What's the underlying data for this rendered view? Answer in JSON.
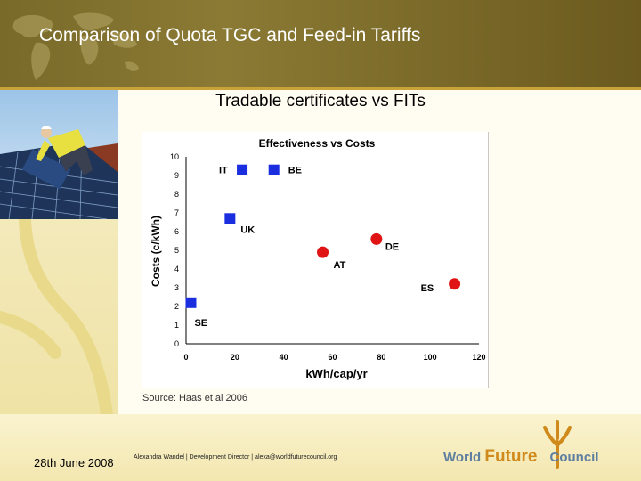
{
  "header": {
    "title": "Comparison of Quota TGC  and Feed-in Tariffs"
  },
  "slide": {
    "subtitle": "Tradable certificates vs FITs",
    "source": "Source: Haas et al 2006"
  },
  "footer": {
    "date": "28th June 2008",
    "credit": "Alexandra Wandel | Development Director | alexa@worldfuturecouncil.org",
    "logo_world": "World",
    "logo_future": "Future",
    "logo_council": "Council"
  },
  "colors": {
    "quota": "#1a2ee0",
    "fit": "#e01414",
    "header_bg": "#7a6a2a",
    "logo_blue": "#5e7fa0",
    "logo_orange": "#d08a1c"
  },
  "icons": {
    "globe": "world-map-icon",
    "logo_mark": "tree-figure-icon"
  },
  "chart_data": {
    "type": "scatter",
    "title": "Effectiveness vs Costs",
    "xlabel": "kWh/cap/yr",
    "ylabel": "Costs (c/kWh)",
    "xlim": [
      0,
      120
    ],
    "ylim": [
      0,
      10
    ],
    "xticks": [
      "0",
      "20",
      "40",
      "60",
      "80",
      "100",
      "120"
    ],
    "yticks": [
      "0",
      "1",
      "2",
      "3",
      "4",
      "5",
      "6",
      "7",
      "8",
      "9",
      "10"
    ],
    "grid": false,
    "series": [
      {
        "marker": "square",
        "color": "#1a2ee0",
        "points": [
          {
            "label": "IT",
            "x": 23,
            "y": 9.3
          },
          {
            "label": "BE",
            "x": 36,
            "y": 9.3
          },
          {
            "label": "UK",
            "x": 18,
            "y": 6.7
          },
          {
            "label": "SE",
            "x": 2,
            "y": 2.2
          }
        ]
      },
      {
        "marker": "circle",
        "color": "#e01414",
        "points": [
          {
            "label": "AT",
            "x": 56,
            "y": 4.9
          },
          {
            "label": "DE",
            "x": 78,
            "y": 5.6
          },
          {
            "label": "ES",
            "x": 110,
            "y": 3.2
          }
        ]
      }
    ]
  }
}
